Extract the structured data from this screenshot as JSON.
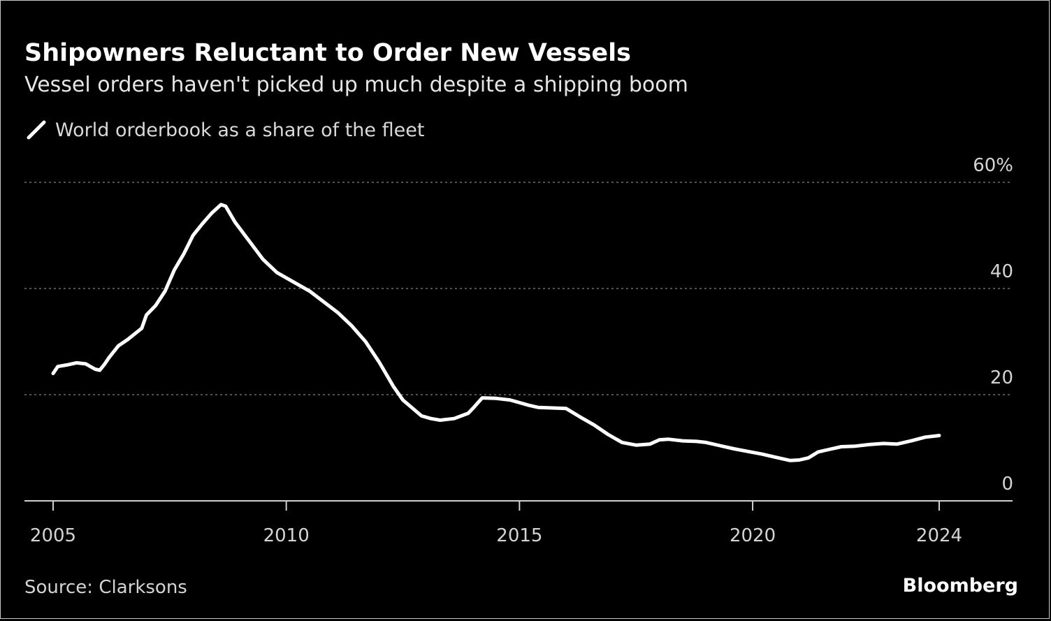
{
  "chart_data": {
    "type": "line",
    "title": "Shipowners Reluctant to Order New Vessels",
    "subtitle": "Vessel orders haven't picked up much despite a shipping boom",
    "source": "Source: Clarksons",
    "brand": "Bloomberg",
    "xlim": [
      2005,
      2025.6
    ],
    "ylim": [
      0,
      60
    ],
    "x_ticks": [
      {
        "value": 2005,
        "label": "2005"
      },
      {
        "value": 2010,
        "label": "2010"
      },
      {
        "value": 2015,
        "label": "2015"
      },
      {
        "value": 2020,
        "label": "2020"
      },
      {
        "value": 2024,
        "label": "2024"
      }
    ],
    "y_ticks": [
      {
        "value": 0,
        "label": "0"
      },
      {
        "value": 20,
        "label": "20"
      },
      {
        "value": 40,
        "label": "40"
      },
      {
        "value": 60,
        "label": "60%"
      }
    ],
    "grid": true,
    "legend_position": "top-left",
    "colors": {
      "background": "#000000",
      "line": "#ffffff",
      "grid": "#6e6e6e"
    },
    "series": [
      {
        "name": "World orderbook as a share of the fleet",
        "x": [
          2005.0,
          2005.1,
          2005.3,
          2005.5,
          2005.7,
          2005.9,
          2006.0,
          2006.1,
          2006.2,
          2006.4,
          2006.6,
          2006.8,
          2006.9,
          2007.0,
          2007.2,
          2007.4,
          2007.6,
          2007.8,
          2008.0,
          2008.2,
          2008.4,
          2008.6,
          2008.7,
          2008.9,
          2009.2,
          2009.5,
          2009.8,
          2010.0,
          2010.3,
          2010.5,
          2010.8,
          2011.1,
          2011.4,
          2011.7,
          2012.0,
          2012.3,
          2012.5,
          2012.7,
          2012.9,
          2013.1,
          2013.3,
          2013.6,
          2013.9,
          2014.0,
          2014.2,
          2014.5,
          2014.8,
          2015.0,
          2015.2,
          2015.4,
          2015.7,
          2016.0,
          2016.3,
          2016.6,
          2016.9,
          2017.2,
          2017.5,
          2017.8,
          2018.0,
          2018.2,
          2018.5,
          2018.8,
          2019.0,
          2019.3,
          2019.6,
          2019.9,
          2020.2,
          2020.5,
          2020.8,
          2021.0,
          2021.2,
          2021.4,
          2021.6,
          2021.9,
          2022.2,
          2022.5,
          2022.8,
          2023.1,
          2023.4,
          2023.7,
          2024.0
        ],
        "values": [
          24.0,
          25.3,
          25.6,
          26.0,
          25.8,
          24.8,
          24.6,
          25.7,
          27.0,
          29.2,
          30.4,
          31.8,
          32.5,
          35.0,
          36.8,
          39.5,
          43.5,
          46.5,
          50.0,
          52.2,
          54.2,
          55.8,
          55.5,
          52.5,
          49.0,
          45.5,
          43.0,
          42.0,
          40.5,
          39.5,
          37.5,
          35.5,
          33.0,
          30.0,
          26.0,
          21.5,
          19.0,
          17.5,
          16.0,
          15.5,
          15.2,
          15.5,
          16.5,
          17.4,
          19.4,
          19.3,
          19.0,
          18.5,
          18.0,
          17.6,
          17.5,
          17.4,
          15.8,
          14.3,
          12.5,
          11.0,
          10.5,
          10.7,
          11.5,
          11.6,
          11.3,
          11.2,
          11.0,
          10.4,
          9.8,
          9.3,
          8.8,
          8.2,
          7.6,
          7.7,
          8.1,
          9.2,
          9.6,
          10.2,
          10.3,
          10.6,
          10.8,
          10.7,
          11.3,
          12.0,
          12.3
        ]
      }
    ]
  }
}
